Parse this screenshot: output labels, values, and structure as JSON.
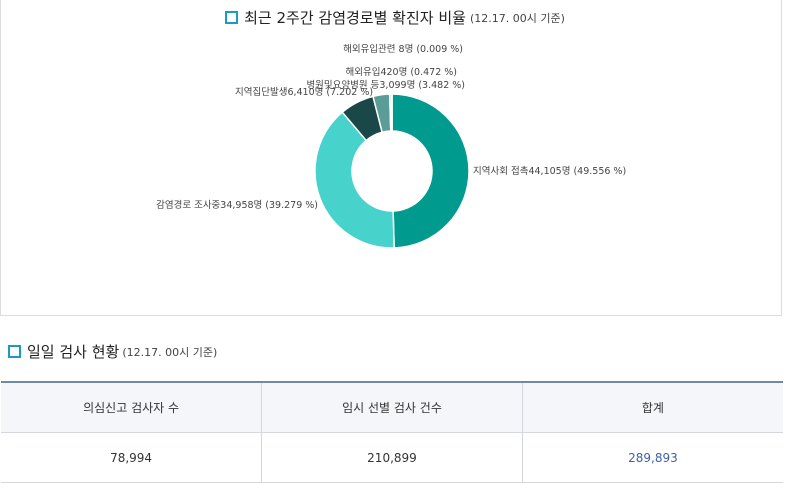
{
  "chart_section": {
    "title": "최근 2주간 감염경로별 확진자 비율",
    "subtitle": "(12.17. 00시 기준)"
  },
  "chart_data": {
    "type": "pie",
    "title": "최근 2주간 감염경로별 확진자 비율",
    "series": [
      {
        "name": "지역사회 접촉",
        "value": 44105,
        "percent": 49.556,
        "color": "#009a8e",
        "label": "지역사회 접촉44,105명 (49.556 %)"
      },
      {
        "name": "감염경로 조사중",
        "value": 34958,
        "percent": 39.279,
        "color": "#47d2cc",
        "label": "감염경로 조사중34,958명 (39.279 %)"
      },
      {
        "name": "지역집단발생",
        "value": 6410,
        "percent": 7.202,
        "color": "#1a4848",
        "label": "지역집단발생6,410명 (7.202 %)"
      },
      {
        "name": "병원및요양병원 등",
        "value": 3099,
        "percent": 3.482,
        "color": "#5a9d98",
        "label": "병원및요양병원 등3,099명 (3.482 %)"
      },
      {
        "name": "해외유입",
        "value": 420,
        "percent": 0.472,
        "color": "#b8dcd8",
        "label": "해외유입420명 (0.472 %)"
      },
      {
        "name": "해외유입관련",
        "value": 8,
        "percent": 0.009,
        "color": "#e2f1ef",
        "label": "해외유입관련 8명 (0.009 %)"
      }
    ]
  },
  "test_section": {
    "title": "일일 검사 현황",
    "subtitle": "(12.17. 00시 기준)"
  },
  "test_table": {
    "headers": [
      "의심신고 검사자 수",
      "임시 선별 검사 건수",
      "합계"
    ],
    "row": [
      "78,994",
      "210,899",
      "289,893"
    ]
  }
}
